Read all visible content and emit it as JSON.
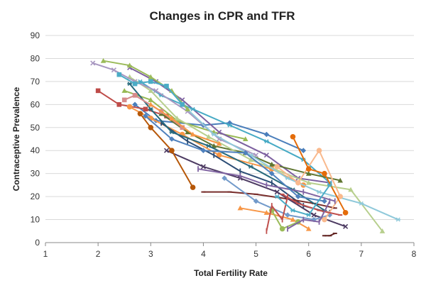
{
  "chart_data": {
    "type": "line",
    "title": "Changes in CPR and TFR",
    "xlabel": "Total Fertility Rate",
    "ylabel": "Contraceptive Prevalence",
    "xlim": [
      1,
      8
    ],
    "ylim": [
      0,
      90
    ],
    "x_ticks": [
      1,
      2,
      3,
      4,
      5,
      6,
      7,
      8
    ],
    "y_ticks": [
      0,
      10,
      20,
      30,
      40,
      50,
      60,
      70,
      80,
      90
    ],
    "grid": "horizontal",
    "legend": "none",
    "series": [
      {
        "color": "#4a7ebb",
        "marker": "diamond",
        "points": [
          [
            2.7,
            60
          ],
          [
            3.1,
            53
          ],
          [
            4.0,
            51
          ],
          [
            4.5,
            52
          ],
          [
            5.2,
            47
          ],
          [
            5.9,
            40
          ]
        ]
      },
      {
        "color": "#be4b48",
        "marker": "square",
        "points": [
          [
            2.0,
            66
          ],
          [
            2.4,
            60
          ],
          [
            2.9,
            58
          ],
          [
            3.3,
            55
          ]
        ]
      },
      {
        "color": "#98b954",
        "marker": "triangle",
        "points": [
          [
            2.5,
            66
          ],
          [
            3.0,
            62
          ],
          [
            3.5,
            53
          ],
          [
            4.2,
            48
          ],
          [
            4.8,
            45
          ]
        ]
      },
      {
        "color": "#7d60a0",
        "marker": "x",
        "points": [
          [
            2.6,
            76
          ],
          [
            3.1,
            70
          ],
          [
            3.6,
            62
          ],
          [
            4.3,
            48
          ],
          [
            5.2,
            38
          ],
          [
            5.8,
            28
          ],
          [
            6.4,
            26
          ]
        ]
      },
      {
        "color": "#46aac5",
        "marker": "star",
        "points": [
          [
            2.8,
            70
          ],
          [
            3.2,
            64
          ],
          [
            3.8,
            58
          ],
          [
            4.5,
            51
          ],
          [
            5.2,
            44
          ],
          [
            5.9,
            36
          ],
          [
            6.4,
            26
          ]
        ]
      },
      {
        "color": "#f79646",
        "marker": "circle",
        "points": [
          [
            2.6,
            59
          ],
          [
            3.0,
            54
          ],
          [
            3.6,
            47
          ],
          [
            4.3,
            38
          ],
          [
            5.3,
            32
          ],
          [
            5.9,
            25
          ]
        ]
      },
      {
        "color": "#2c4d75",
        "marker": "plus",
        "points": [
          [
            3.2,
            52
          ],
          [
            3.7,
            44
          ],
          [
            4.2,
            38
          ],
          [
            4.7,
            31
          ],
          [
            5.3,
            26
          ],
          [
            5.9,
            16
          ],
          [
            6.4,
            13
          ]
        ]
      },
      {
        "color": "#772c2a",
        "marker": "dash",
        "points": [
          [
            4.0,
            22
          ],
          [
            4.5,
            22
          ],
          [
            5.0,
            21
          ],
          [
            5.6,
            19
          ],
          [
            6.1,
            17
          ],
          [
            6.5,
            15
          ]
        ]
      },
      {
        "color": "#5f7530",
        "marker": "triangle",
        "points": [
          [
            3.2,
            56
          ],
          [
            3.7,
            48
          ],
          [
            4.2,
            42
          ],
          [
            4.8,
            39
          ],
          [
            5.3,
            34
          ],
          [
            6.0,
            30
          ],
          [
            6.6,
            27
          ]
        ]
      },
      {
        "color": "#4d3b62",
        "marker": "x",
        "points": [
          [
            3.3,
            40
          ],
          [
            4.0,
            33
          ],
          [
            4.7,
            28
          ],
          [
            5.4,
            22
          ],
          [
            6.1,
            12
          ],
          [
            6.7,
            7
          ]
        ]
      },
      {
        "color": "#276a7c",
        "marker": "star",
        "points": [
          [
            2.6,
            69
          ],
          [
            3.0,
            58
          ],
          [
            3.4,
            48
          ],
          [
            4.1,
            42
          ],
          [
            4.9,
            33
          ],
          [
            5.7,
            23
          ],
          [
            6.3,
            14
          ]
        ]
      },
      {
        "color": "#b65708",
        "marker": "circle",
        "points": [
          [
            2.8,
            56
          ],
          [
            3.0,
            50
          ],
          [
            3.4,
            40
          ],
          [
            3.8,
            24
          ]
        ]
      },
      {
        "color": "#729aca",
        "marker": "diamond",
        "points": [
          [
            4.4,
            28
          ],
          [
            5.0,
            18
          ],
          [
            5.6,
            12
          ],
          [
            6.1,
            10
          ],
          [
            6.4,
            12
          ]
        ]
      },
      {
        "color": "#d68b8b",
        "marker": "square",
        "points": [
          [
            2.5,
            62
          ],
          [
            2.7,
            64
          ],
          [
            3.2,
            57
          ],
          [
            3.6,
            50
          ]
        ]
      },
      {
        "color": "#b7cf8d",
        "marker": "triangle",
        "points": [
          [
            2.6,
            72
          ],
          [
            3.0,
            66
          ],
          [
            3.5,
            54
          ],
          [
            4.1,
            46
          ],
          [
            4.9,
            36
          ],
          [
            6.0,
            26
          ],
          [
            6.8,
            23
          ],
          [
            7.4,
            5
          ]
        ]
      },
      {
        "color": "#a897c1",
        "marker": "x",
        "points": [
          [
            1.9,
            78
          ],
          [
            2.3,
            75
          ],
          [
            2.7,
            70
          ],
          [
            3.1,
            66
          ],
          [
            3.7,
            57
          ],
          [
            4.3,
            45
          ],
          [
            5.0,
            38
          ]
        ]
      },
      {
        "color": "#8fc9da",
        "marker": "star",
        "points": [
          [
            3.6,
            60
          ],
          [
            4.2,
            47
          ],
          [
            4.9,
            38
          ],
          [
            5.6,
            28
          ],
          [
            6.2,
            22
          ],
          [
            7.0,
            17
          ],
          [
            7.7,
            10
          ]
        ]
      },
      {
        "color": "#f9b98d",
        "marker": "circle",
        "points": [
          [
            5.4,
            33
          ],
          [
            5.8,
            26
          ],
          [
            6.2,
            40
          ],
          [
            6.6,
            20
          ],
          [
            6.3,
            10
          ]
        ]
      },
      {
        "color": "#9bbb59",
        "marker": "triangle",
        "points": [
          [
            2.1,
            79
          ],
          [
            2.6,
            77
          ],
          [
            3.0,
            72
          ],
          [
            3.4,
            66
          ],
          [
            3.7,
            58
          ]
        ]
      },
      {
        "color": "#4bacc6",
        "marker": "square",
        "points": [
          [
            2.4,
            73
          ],
          [
            2.7,
            69
          ],
          [
            3.0,
            70
          ],
          [
            3.3,
            68
          ],
          [
            3.6,
            60
          ]
        ]
      },
      {
        "color": "#e46c0a",
        "marker": "circle",
        "points": [
          [
            5.7,
            46
          ],
          [
            6.0,
            32
          ],
          [
            6.3,
            30
          ],
          [
            6.7,
            13
          ]
        ]
      },
      {
        "color": "#8064a2",
        "marker": "plus",
        "points": [
          [
            3.9,
            32
          ],
          [
            4.7,
            29
          ],
          [
            5.2,
            25
          ],
          [
            5.9,
            22
          ],
          [
            6.5,
            18
          ]
        ]
      },
      {
        "color": "#c0504d",
        "marker": "dash",
        "points": [
          [
            5.5,
            21
          ],
          [
            5.8,
            17
          ],
          [
            6.2,
            14
          ],
          [
            6.6,
            12
          ]
        ]
      },
      {
        "color": "#4f81bd",
        "marker": "diamond",
        "points": [
          [
            2.9,
            55
          ],
          [
            3.4,
            45
          ],
          [
            4.0,
            40
          ],
          [
            4.8,
            39
          ],
          [
            5.3,
            30
          ],
          [
            5.8,
            20
          ],
          [
            6.3,
            18
          ]
        ]
      },
      {
        "color": "#f79646",
        "marker": "triangle",
        "points": [
          [
            4.7,
            15
          ],
          [
            5.2,
            13
          ],
          [
            5.7,
            10
          ],
          [
            6.0,
            6
          ]
        ]
      },
      {
        "color": "#9bbb59",
        "marker": "circle",
        "points": [
          [
            5.3,
            14
          ],
          [
            5.5,
            6
          ],
          [
            5.8,
            9
          ]
        ]
      },
      {
        "color": "#c0504d",
        "marker": "plus",
        "points": [
          [
            5.2,
            5
          ],
          [
            5.3,
            16
          ],
          [
            5.5,
            10
          ],
          [
            5.6,
            20
          ]
        ]
      },
      {
        "color": "#8064a2",
        "marker": "plus",
        "points": [
          [
            5.6,
            6
          ],
          [
            5.9,
            10
          ],
          [
            6.2,
            9
          ],
          [
            6.4,
            18
          ]
        ]
      },
      {
        "color": "#4bacc6",
        "marker": "star",
        "points": [
          [
            5.4,
            20
          ],
          [
            5.7,
            14
          ],
          [
            6.0,
            12
          ],
          [
            6.4,
            25
          ]
        ]
      },
      {
        "color": "#632523",
        "marker": "dash",
        "points": [
          [
            6.3,
            3
          ],
          [
            6.4,
            3
          ],
          [
            6.5,
            4
          ]
        ]
      },
      {
        "color": "#f79646",
        "marker": "triangle",
        "points": [
          [
            3.0,
            60
          ],
          [
            3.4,
            54
          ],
          [
            3.8,
            47
          ],
          [
            4.3,
            43
          ]
        ]
      }
    ]
  }
}
